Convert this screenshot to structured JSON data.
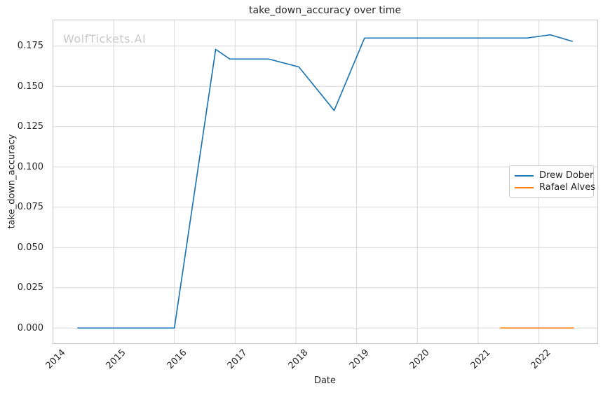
{
  "chart_data": {
    "type": "line",
    "title": "take_down_accuracy over time",
    "xlabel": "Date",
    "ylabel": "take_down_accuracy",
    "watermark": "WolfTickets.AI",
    "xlim": [
      2014.0,
      2022.97
    ],
    "ylim": [
      -0.0097,
      0.1912
    ],
    "x_ticks": [
      2014,
      2015,
      2016,
      2017,
      2018,
      2019,
      2020,
      2021,
      2022
    ],
    "x_tick_labels": [
      "2014",
      "2015",
      "2016",
      "2017",
      "2018",
      "2019",
      "2020",
      "2021",
      "2022"
    ],
    "y_ticks": [
      0.0,
      0.025,
      0.05,
      0.075,
      0.1,
      0.125,
      0.15,
      0.175
    ],
    "y_tick_labels": [
      "0.000",
      "0.025",
      "0.050",
      "0.075",
      "0.100",
      "0.125",
      "0.150",
      "0.175"
    ],
    "grid": true,
    "legend_position": "right-center",
    "series": [
      {
        "name": "Drew Dober",
        "color": "#1f77b4",
        "points": [
          [
            2014.41,
            0.0
          ],
          [
            2016.0,
            0.0
          ],
          [
            2016.68,
            0.173
          ],
          [
            2016.91,
            0.167
          ],
          [
            2017.55,
            0.167
          ],
          [
            2018.05,
            0.162
          ],
          [
            2018.63,
            0.135
          ],
          [
            2019.13,
            0.18
          ],
          [
            2021.8,
            0.18
          ],
          [
            2022.19,
            0.182
          ],
          [
            2022.55,
            0.178
          ]
        ]
      },
      {
        "name": "Rafael Alves",
        "color": "#ff7f0e",
        "points": [
          [
            2021.37,
            0.0
          ],
          [
            2022.57,
            0.0
          ]
        ]
      }
    ],
    "colors": {
      "grid": "#d9d9d9",
      "spine": "#cccccc",
      "text": "#262626",
      "watermark": "#c9c9c9",
      "background": "#ffffff"
    }
  }
}
